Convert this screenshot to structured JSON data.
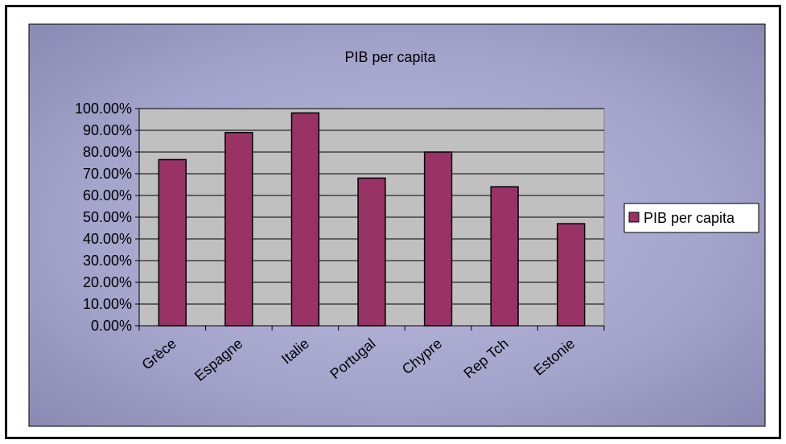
{
  "chart_data": {
    "type": "bar",
    "title": "PIB per capita",
    "categories": [
      "Grèce",
      "Espagne",
      "Italie",
      "Portugal",
      "Chypre",
      "Rep Tch",
      "Estonie"
    ],
    "series": [
      {
        "name": "PIB per capita",
        "values": [
          0.765,
          0.89,
          0.98,
          0.68,
          0.8,
          0.64,
          0.47
        ],
        "color": "#993366"
      }
    ],
    "ylim": [
      0,
      1
    ],
    "yticks": [
      0,
      0.1,
      0.2,
      0.3,
      0.4,
      0.5,
      0.6,
      0.7,
      0.8,
      0.9,
      1.0
    ],
    "ytick_labels": [
      "0.00%",
      "10.00%",
      "20.00%",
      "30.00%",
      "40.00%",
      "50.00%",
      "60.00%",
      "70.00%",
      "80.00%",
      "90.00%",
      "100.00%"
    ],
    "grid": true,
    "legend": "right",
    "plot_area_color": "#c0c0c0",
    "chart_area_color": "#9c9cc8"
  }
}
